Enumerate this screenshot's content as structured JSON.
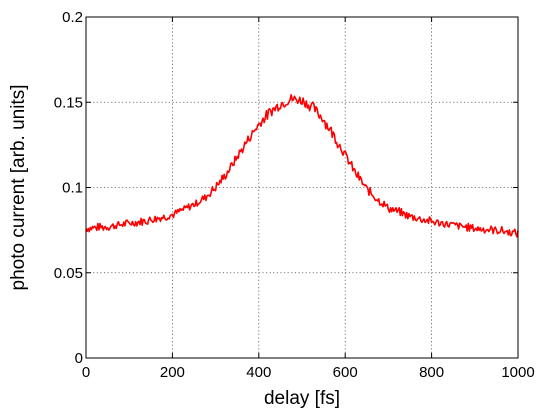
{
  "chart_data": {
    "type": "line",
    "title": "",
    "xlabel": "delay [fs]",
    "ylabel": "photo current [arb. units]",
    "xlim": [
      0,
      1000
    ],
    "ylim": [
      0,
      0.2
    ],
    "xticks": [
      0,
      200,
      400,
      600,
      800,
      1000
    ],
    "xtick_labels": [
      "0",
      "200",
      "400",
      "600",
      "800",
      "1000"
    ],
    "yticks": [
      0,
      0.05,
      0.1,
      0.15,
      0.2
    ],
    "ytick_labels": [
      "0",
      "0.05",
      "0.1",
      "0.15",
      "0.2"
    ],
    "grid": true,
    "legend": "none",
    "series": [
      {
        "color": "#ff0000",
        "x": [
          0,
          50,
          100,
          150,
          200,
          225,
          250,
          275,
          300,
          325,
          350,
          375,
          400,
          425,
          450,
          475,
          500,
          525,
          550,
          575,
          600,
          625,
          650,
          675,
          700,
          750,
          800,
          850,
          900,
          950,
          1000
        ],
        "y": [
          0.076,
          0.077,
          0.079,
          0.081,
          0.084,
          0.087,
          0.09,
          0.094,
          0.1,
          0.108,
          0.118,
          0.128,
          0.137,
          0.144,
          0.149,
          0.152,
          0.151,
          0.147,
          0.14,
          0.13,
          0.119,
          0.108,
          0.099,
          0.093,
          0.088,
          0.083,
          0.08,
          0.078,
          0.076,
          0.075,
          0.073
        ]
      }
    ]
  }
}
